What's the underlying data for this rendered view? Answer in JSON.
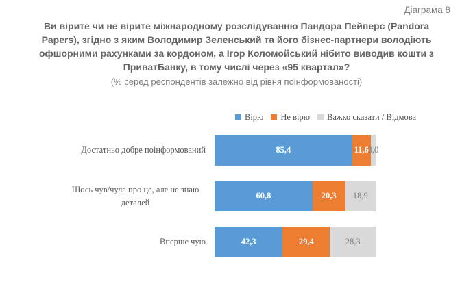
{
  "page": {
    "corner_label": "Діаграма 8",
    "title": "Ви вірите чи не вірите міжнародному розслідуванню Пандора Пейперс (Pandora Papers), згідно з яким Володимир Зеленський та його бізнес-партнери володіють офшорними рахунками за кордоном, а Ігор Коломойський нібито виводив кошти з ПриватБанку, в тому числі через «95 квартал»?",
    "subtitle": "(% серед респондентів залежно від рівня поінформованості)"
  },
  "chart_data": {
    "type": "bar",
    "orientation": "horizontal",
    "stacked": true,
    "unit": "percent",
    "xlim": [
      0,
      100
    ],
    "grid": false,
    "legend_position": "top",
    "categories": [
      "Достатньо добре поінформований",
      "Щось чув/чула про це, але не знаю деталей",
      "Вперше чую"
    ],
    "series": [
      {
        "name": "Вірю",
        "color": "#5B9BD5",
        "label_color": "#FFFFFF",
        "label_bold": true,
        "values": [
          85.4,
          60.8,
          42.3
        ],
        "labels": [
          "85,4",
          "60,8",
          "42,3"
        ]
      },
      {
        "name": "Не вірю",
        "color": "#ED7D31",
        "label_color": "#FFFFFF",
        "label_bold": true,
        "values": [
          11.6,
          20.3,
          29.4
        ],
        "labels": [
          "11,6",
          "20,3",
          "29,4"
        ]
      },
      {
        "name": "Важко сказати / Відмова",
        "color": "#D9D9D9",
        "label_color": "#7F7F7F",
        "label_bold": false,
        "values": [
          3.0,
          18.9,
          28.3
        ],
        "labels": [
          "3,0",
          "18,9",
          "28,3"
        ]
      }
    ]
  }
}
